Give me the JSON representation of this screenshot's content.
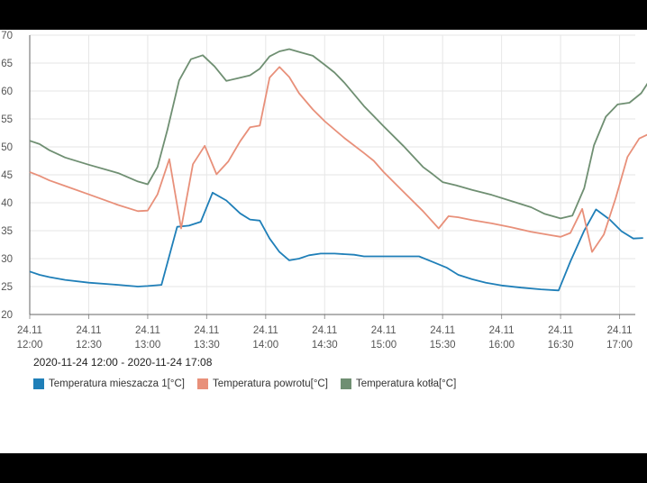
{
  "date_range": "2020-11-24 12:00 - 2020-11-24 17:08",
  "chart_data": {
    "type": "line",
    "title": "",
    "xlabel": "",
    "ylabel": "",
    "xlim": [
      0,
      308
    ],
    "ylim": [
      20,
      70
    ],
    "yticks": [
      20,
      25,
      30,
      35,
      40,
      45,
      50,
      55,
      60,
      65,
      70
    ],
    "xticks": [
      {
        "t": 0,
        "date": "24.11",
        "time": "12:00"
      },
      {
        "t": 30,
        "date": "24.11",
        "time": "12:30"
      },
      {
        "t": 60,
        "date": "24.11",
        "time": "13:00"
      },
      {
        "t": 90,
        "date": "24.11",
        "time": "13:30"
      },
      {
        "t": 120,
        "date": "24.11",
        "time": "14:00"
      },
      {
        "t": 150,
        "date": "24.11",
        "time": "14:30"
      },
      {
        "t": 180,
        "date": "24.11",
        "time": "15:00"
      },
      {
        "t": 210,
        "date": "24.11",
        "time": "15:30"
      },
      {
        "t": 240,
        "date": "24.11",
        "time": "16:00"
      },
      {
        "t": 270,
        "date": "24.11",
        "time": "16:30"
      },
      {
        "t": 300,
        "date": "24.11",
        "time": "17:00"
      }
    ],
    "grid": true,
    "legend": "bottom-left",
    "series": [
      {
        "name": "Temperatura mieszacza 1[°C]",
        "color": "#1f7fb8",
        "points": [
          [
            0,
            27.7
          ],
          [
            5,
            27.1
          ],
          [
            10,
            26.7
          ],
          [
            18,
            26.2
          ],
          [
            30,
            25.7
          ],
          [
            45,
            25.3
          ],
          [
            55,
            25.0
          ],
          [
            60,
            25.1
          ],
          [
            67,
            25.3
          ],
          [
            75,
            35.7
          ],
          [
            81,
            35.9
          ],
          [
            87,
            36.6
          ],
          [
            93,
            41.8
          ],
          [
            100,
            40.4
          ],
          [
            107,
            38.1
          ],
          [
            112,
            37.0
          ],
          [
            117,
            36.8
          ],
          [
            122,
            33.6
          ],
          [
            127,
            31.2
          ],
          [
            132,
            29.7
          ],
          [
            137,
            30.0
          ],
          [
            142,
            30.6
          ],
          [
            148,
            30.9
          ],
          [
            155,
            30.9
          ],
          [
            165,
            30.7
          ],
          [
            170,
            30.4
          ],
          [
            180,
            30.4
          ],
          [
            190,
            30.4
          ],
          [
            198,
            30.4
          ],
          [
            205,
            29.4
          ],
          [
            212,
            28.4
          ],
          [
            218,
            27.1
          ],
          [
            225,
            26.3
          ],
          [
            232,
            25.7
          ],
          [
            240,
            25.2
          ],
          [
            250,
            24.8
          ],
          [
            260,
            24.5
          ],
          [
            269,
            24.3
          ],
          [
            275,
            29.5
          ],
          [
            282,
            35.0
          ],
          [
            288,
            38.8
          ],
          [
            295,
            37.0
          ],
          [
            301,
            34.9
          ],
          [
            307,
            33.6
          ],
          [
            312,
            33.7
          ]
        ]
      },
      {
        "name": "Temperatura powrotu[°C]",
        "color": "#e8907a",
        "points": [
          [
            0,
            45.5
          ],
          [
            5,
            44.8
          ],
          [
            10,
            44.0
          ],
          [
            18,
            43.0
          ],
          [
            30,
            41.5
          ],
          [
            45,
            39.6
          ],
          [
            55,
            38.5
          ],
          [
            60,
            38.6
          ],
          [
            65,
            41.5
          ],
          [
            71,
            47.8
          ],
          [
            77,
            35.4
          ],
          [
            83,
            46.9
          ],
          [
            89,
            50.2
          ],
          [
            95,
            45.1
          ],
          [
            101,
            47.4
          ],
          [
            107,
            51.0
          ],
          [
            112,
            53.5
          ],
          [
            117,
            53.8
          ],
          [
            122,
            62.4
          ],
          [
            127,
            64.3
          ],
          [
            132,
            62.5
          ],
          [
            137,
            59.6
          ],
          [
            144,
            56.7
          ],
          [
            150,
            54.6
          ],
          [
            160,
            51.6
          ],
          [
            170,
            48.9
          ],
          [
            175,
            47.5
          ],
          [
            180,
            45.5
          ],
          [
            190,
            42.0
          ],
          [
            200,
            38.5
          ],
          [
            208,
            35.4
          ],
          [
            213,
            37.6
          ],
          [
            218,
            37.4
          ],
          [
            225,
            36.9
          ],
          [
            235,
            36.3
          ],
          [
            245,
            35.6
          ],
          [
            255,
            34.8
          ],
          [
            265,
            34.2
          ],
          [
            270,
            33.9
          ],
          [
            275,
            34.6
          ],
          [
            281,
            38.9
          ],
          [
            286,
            31.2
          ],
          [
            292,
            34.3
          ],
          [
            298,
            40.8
          ],
          [
            304,
            48.2
          ],
          [
            310,
            51.5
          ],
          [
            316,
            52.5
          ]
        ]
      },
      {
        "name": "Temperatura kotła[°C]",
        "color": "#6f8f72",
        "points": [
          [
            0,
            51.1
          ],
          [
            5,
            50.5
          ],
          [
            10,
            49.4
          ],
          [
            18,
            48.1
          ],
          [
            30,
            46.8
          ],
          [
            45,
            45.3
          ],
          [
            55,
            43.8
          ],
          [
            60,
            43.3
          ],
          [
            65,
            46.4
          ],
          [
            70,
            53.0
          ],
          [
            76,
            61.9
          ],
          [
            82,
            65.7
          ],
          [
            88,
            66.4
          ],
          [
            94,
            64.4
          ],
          [
            100,
            61.8
          ],
          [
            106,
            62.3
          ],
          [
            112,
            62.8
          ],
          [
            117,
            64.0
          ],
          [
            122,
            66.2
          ],
          [
            127,
            67.1
          ],
          [
            132,
            67.5
          ],
          [
            137,
            67.0
          ],
          [
            144,
            66.3
          ],
          [
            150,
            64.7
          ],
          [
            155,
            63.3
          ],
          [
            160,
            61.5
          ],
          [
            165,
            59.4
          ],
          [
            170,
            57.3
          ],
          [
            180,
            53.7
          ],
          [
            190,
            50.2
          ],
          [
            200,
            46.4
          ],
          [
            205,
            45.1
          ],
          [
            210,
            43.7
          ],
          [
            217,
            43.1
          ],
          [
            225,
            42.3
          ],
          [
            235,
            41.4
          ],
          [
            245,
            40.3
          ],
          [
            255,
            39.2
          ],
          [
            262,
            38.0
          ],
          [
            270,
            37.2
          ],
          [
            276,
            37.7
          ],
          [
            282,
            42.6
          ],
          [
            287,
            50.3
          ],
          [
            293,
            55.4
          ],
          [
            299,
            57.6
          ],
          [
            305,
            57.9
          ],
          [
            311,
            59.6
          ],
          [
            316,
            62.3
          ]
        ]
      }
    ]
  }
}
